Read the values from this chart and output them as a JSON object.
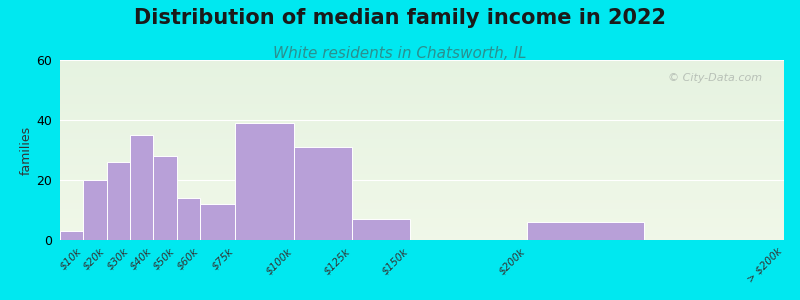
{
  "title": "Distribution of median family income in 2022",
  "subtitle": "White residents in Chatsworth, IL",
  "ylabel": "families",
  "bar_color": "#b8a0d8",
  "bar_edge_color": "#ffffff",
  "ylim": [
    0,
    60
  ],
  "yticks": [
    0,
    20,
    40,
    60
  ],
  "background_outer": "#00e8f0",
  "title_fontsize": 15,
  "subtitle_fontsize": 11,
  "subtitle_color": "#2a9090",
  "watermark_text": "© City-Data.com",
  "watermark_color": "#b0b8b0",
  "bin_edges": [
    0,
    10,
    20,
    30,
    40,
    50,
    60,
    75,
    100,
    125,
    150,
    200,
    250,
    310
  ],
  "bin_values": [
    3,
    20,
    26,
    35,
    28,
    14,
    12,
    39,
    31,
    7,
    0,
    6,
    0
  ],
  "tick_positions": [
    10,
    20,
    30,
    40,
    50,
    60,
    75,
    100,
    125,
    150,
    200,
    310
  ],
  "tick_labels": [
    "$10k",
    "$20k",
    "$30k",
    "$40k",
    "$50k",
    "$60k",
    "$75k",
    "$100k",
    "$125k",
    "$150k",
    "$200k",
    "> $200k"
  ]
}
